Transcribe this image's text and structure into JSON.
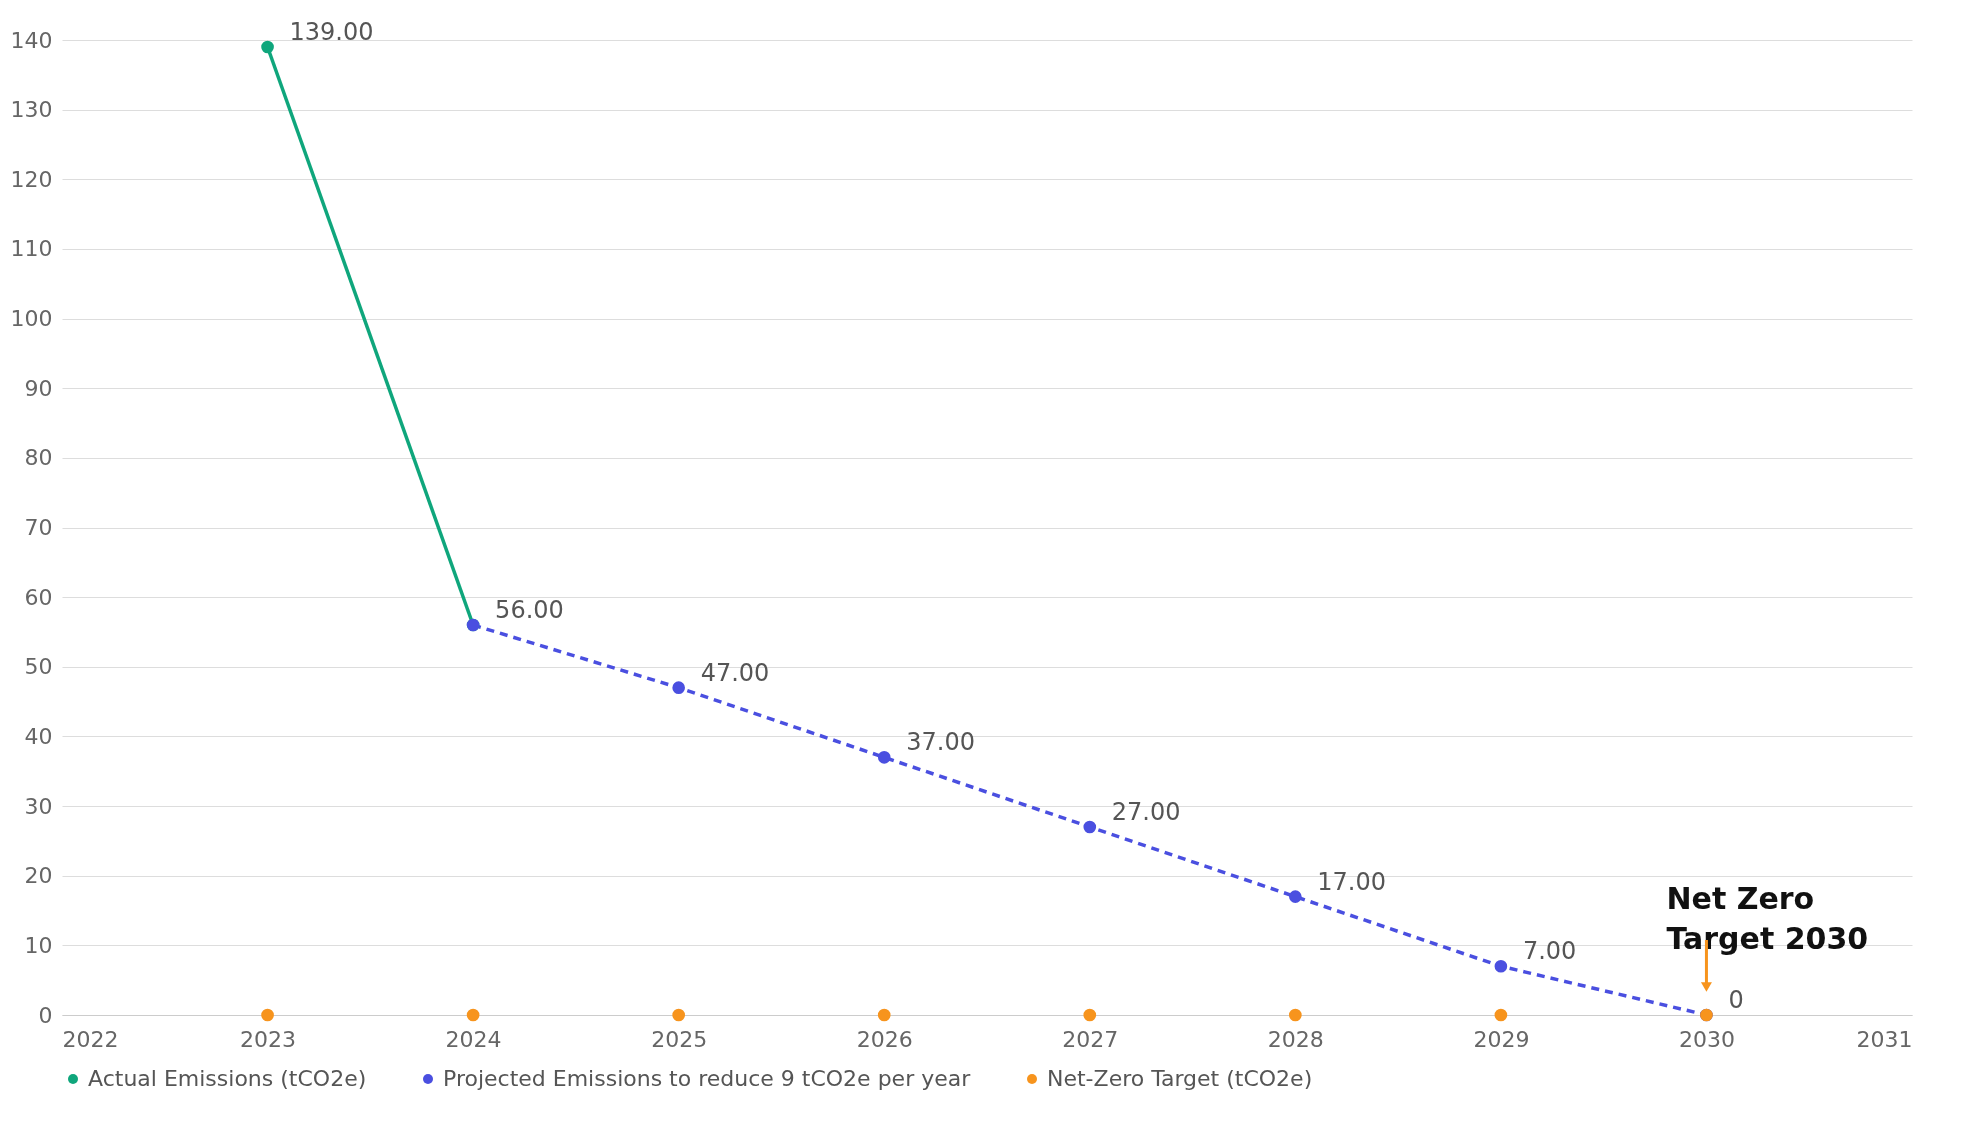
{
  "chart_data": {
    "type": "line",
    "series": [
      {
        "name": "Actual Emissions (tCO2e)",
        "color": "#0fa67c",
        "line_style": "solid",
        "x": [
          2023,
          2024
        ],
        "values": [
          139,
          56
        ],
        "value_labels": [
          "139.00",
          "56.00"
        ]
      },
      {
        "name": "Projected Emissions to reduce 9 tCO2e per year",
        "color": "#4a4fe0",
        "line_style": "dashed",
        "x": [
          2024,
          2025,
          2026,
          2027,
          2028,
          2029,
          2030
        ],
        "values": [
          56,
          47,
          37,
          27,
          17,
          7,
          0
        ],
        "value_labels": [
          null,
          "47.00",
          "37.00",
          "27.00",
          "17.00",
          "7.00",
          "0"
        ]
      },
      {
        "name": "Net-Zero Target (tCO2e)",
        "color": "#f7941d",
        "type": "scatter",
        "x": [
          2023,
          2024,
          2025,
          2026,
          2027,
          2028,
          2029,
          2030
        ],
        "values": [
          0,
          0,
          0,
          0,
          0,
          0,
          0,
          0
        ]
      }
    ],
    "annotations": [
      {
        "text": "Net Zero\nTarget 2030",
        "x": 2030,
        "y": 0
      }
    ],
    "xlim": [
      2022,
      2031
    ],
    "xticks": [
      2022,
      2023,
      2024,
      2025,
      2026,
      2027,
      2028,
      2029,
      2030,
      2031
    ],
    "ylim": [
      0,
      140
    ],
    "yticks": [
      0,
      10,
      20,
      30,
      40,
      50,
      60,
      70,
      80,
      90,
      100,
      110,
      120,
      130,
      140
    ],
    "grid": "y",
    "marker": "circle",
    "legend": "bottom"
  }
}
